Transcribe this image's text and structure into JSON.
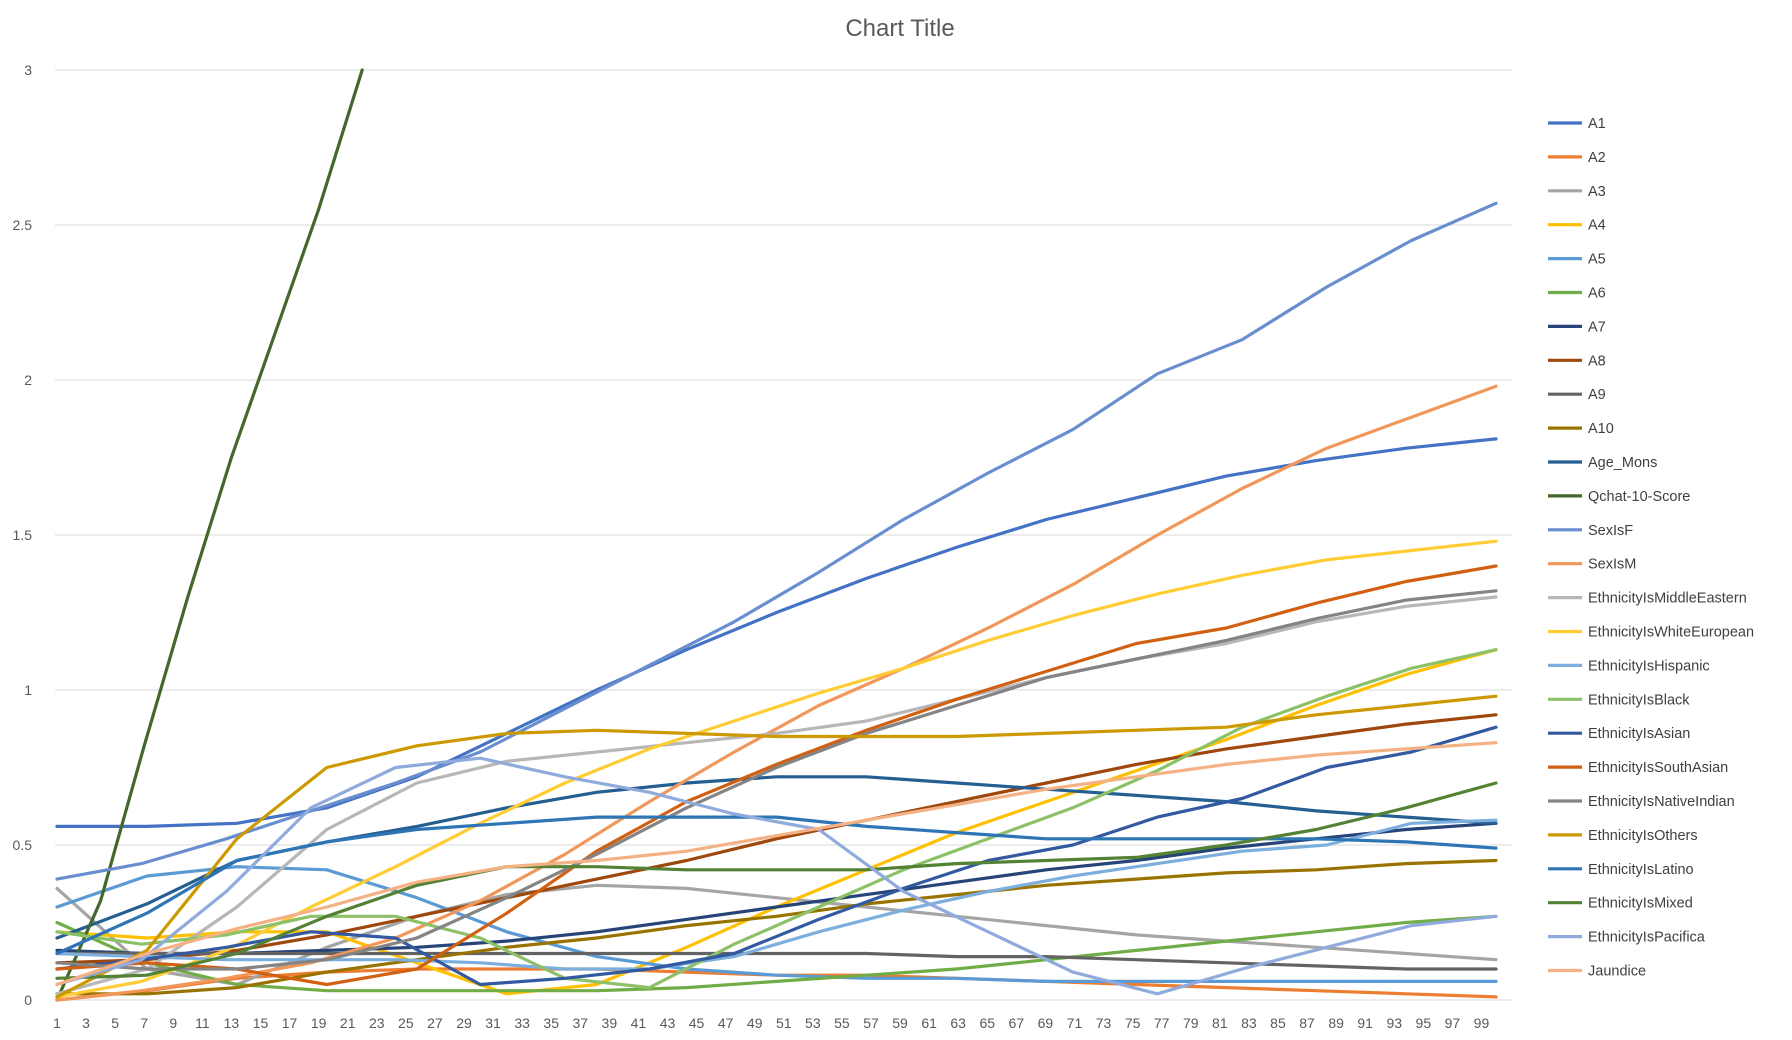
{
  "chart_data": {
    "type": "line",
    "title": "Chart Title",
    "xlabel": "",
    "ylabel": "",
    "x_range": [
      1,
      100
    ],
    "x_tick_labels": [
      "1",
      "3",
      "5",
      "7",
      "9",
      "11",
      "13",
      "15",
      "17",
      "19",
      "21",
      "23",
      "25",
      "27",
      "29",
      "31",
      "33",
      "35",
      "37",
      "39",
      "41",
      "43",
      "45",
      "47",
      "49",
      "51",
      "53",
      "55",
      "57",
      "59",
      "61",
      "63",
      "65",
      "67",
      "69",
      "71",
      "73",
      "75",
      "77",
      "79",
      "81",
      "83",
      "85",
      "87",
      "89",
      "91",
      "93",
      "95",
      "97",
      "99"
    ],
    "ylim": [
      0,
      3
    ],
    "y_ticks": [
      0,
      0.5,
      1,
      1.5,
      2,
      2.5,
      3
    ],
    "y_tick_labels": [
      "0",
      "0.5",
      "1",
      "1.5",
      "2",
      "2.5",
      "3"
    ],
    "grid": true,
    "legend_position": "right",
    "series": [
      {
        "name": "A1",
        "color": "#4472C4",
        "values": [
          0.56,
          0.56,
          0.57,
          0.62,
          0.72,
          0.86,
          1.0,
          1.13,
          1.25,
          1.36,
          1.46,
          1.55,
          1.62,
          1.69,
          1.74,
          1.78,
          1.81
        ]
      },
      {
        "name": "A2",
        "color": "#ED7D31",
        "values": [
          0.0,
          0.03,
          0.07,
          0.09,
          0.1,
          0.1,
          0.1,
          0.09,
          0.08,
          0.08,
          0.07,
          0.06,
          0.05,
          0.04,
          0.03,
          0.02,
          0.01
        ]
      },
      {
        "name": "A3",
        "color": "#A5A5A5",
        "values": [
          0.36,
          0.1,
          0.05,
          0.17,
          0.27,
          0.34,
          0.37,
          0.36,
          0.33,
          0.3,
          0.27,
          0.24,
          0.21,
          0.19,
          0.17,
          0.15,
          0.13
        ]
      },
      {
        "name": "A4",
        "color": "#FFC000",
        "values": [
          0.22,
          0.2,
          0.22,
          0.22,
          0.12,
          0.02,
          0.05,
          0.17,
          0.3,
          0.42,
          0.54,
          0.64,
          0.74,
          0.84,
          0.95,
          1.05,
          1.13
        ]
      },
      {
        "name": "A5",
        "color": "#5B9BD5",
        "values": [
          0.3,
          0.4,
          0.43,
          0.42,
          0.33,
          0.22,
          0.14,
          0.1,
          0.08,
          0.07,
          0.07,
          0.06,
          0.06,
          0.06,
          0.06,
          0.06,
          0.06
        ]
      },
      {
        "name": "A6",
        "color": "#70AD47",
        "values": [
          0.25,
          0.12,
          0.05,
          0.03,
          0.03,
          0.03,
          0.03,
          0.04,
          0.06,
          0.08,
          0.1,
          0.13,
          0.16,
          0.19,
          0.22,
          0.25,
          0.27
        ]
      },
      {
        "name": "A7",
        "color": "#264478",
        "values": [
          0.16,
          0.15,
          0.15,
          0.16,
          0.17,
          0.19,
          0.22,
          0.26,
          0.3,
          0.34,
          0.38,
          0.42,
          0.45,
          0.49,
          0.52,
          0.55,
          0.57
        ]
      },
      {
        "name": "A8",
        "color": "#9E480E",
        "values": [
          0.12,
          0.13,
          0.16,
          0.21,
          0.27,
          0.33,
          0.39,
          0.45,
          0.52,
          0.58,
          0.64,
          0.7,
          0.76,
          0.81,
          0.85,
          0.89,
          0.92
        ]
      },
      {
        "name": "A9",
        "color": "#636363",
        "values": [
          0.15,
          0.15,
          0.15,
          0.15,
          0.15,
          0.15,
          0.15,
          0.15,
          0.15,
          0.15,
          0.14,
          0.14,
          0.13,
          0.12,
          0.11,
          0.1,
          0.1
        ]
      },
      {
        "name": "A10",
        "color": "#997300",
        "values": [
          0.02,
          0.02,
          0.04,
          0.09,
          0.13,
          0.17,
          0.2,
          0.24,
          0.27,
          0.31,
          0.34,
          0.37,
          0.39,
          0.41,
          0.42,
          0.44,
          0.45
        ]
      },
      {
        "name": "Age_Mons",
        "color": "#255E91",
        "values": [
          0.2,
          0.31,
          0.45,
          0.51,
          0.56,
          0.62,
          0.67,
          0.7,
          0.72,
          0.72,
          0.7,
          0.68,
          0.66,
          0.64,
          0.61,
          0.59,
          0.57
        ]
      },
      {
        "name": "Qchat-10-Score",
        "color": "#43682B",
        "values": [
          0.0,
          0.32,
          0.82,
          1.3,
          1.75,
          2.15,
          2.55,
          3.0
        ]
      },
      {
        "name": "SexIsF",
        "color": "#698ED0",
        "values": [
          0.39,
          0.44,
          0.52,
          0.61,
          0.7,
          0.8,
          0.94,
          1.08,
          1.22,
          1.38,
          1.55,
          1.7,
          1.84,
          2.02,
          2.13,
          2.3,
          2.45,
          2.57
        ]
      },
      {
        "name": "SexIsM",
        "color": "#F1975A",
        "values": [
          0.0,
          0.03,
          0.07,
          0.12,
          0.2,
          0.32,
          0.47,
          0.64,
          0.8,
          0.95,
          1.07,
          1.2,
          1.34,
          1.5,
          1.65,
          1.78,
          1.88,
          1.98
        ]
      },
      {
        "name": "EthnicityIsMiddleEastern",
        "color": "#B7B7B7",
        "values": [
          0.02,
          0.1,
          0.3,
          0.55,
          0.7,
          0.77,
          0.8,
          0.83,
          0.86,
          0.9,
          0.97,
          1.04,
          1.1,
          1.15,
          1.22,
          1.27,
          1.3
        ]
      },
      {
        "name": "EthnicityIsWhiteEuropean",
        "color": "#FFCD33",
        "values": [
          0.01,
          0.06,
          0.16,
          0.3,
          0.43,
          0.57,
          0.7,
          0.81,
          0.9,
          0.99,
          1.07,
          1.16,
          1.24,
          1.31,
          1.37,
          1.42,
          1.45,
          1.48
        ]
      },
      {
        "name": "EthnicityIsHispanic",
        "color": "#7CAFDD",
        "values": [
          0.15,
          0.14,
          0.13,
          0.13,
          0.13,
          0.12,
          0.1,
          0.1,
          0.14,
          0.22,
          0.29,
          0.35,
          0.4,
          0.44,
          0.48,
          0.5,
          0.57,
          0.58
        ]
      },
      {
        "name": "EthnicityIsBlack",
        "color": "#8CC168",
        "values": [
          0.22,
          0.18,
          0.21,
          0.27,
          0.27,
          0.2,
          0.07,
          0.04,
          0.18,
          0.3,
          0.42,
          0.52,
          0.62,
          0.74,
          0.88,
          0.98,
          1.07,
          1.13
        ]
      },
      {
        "name": "EthnicityIsAsian",
        "color": "#335AA1",
        "values": [
          0.1,
          0.13,
          0.17,
          0.22,
          0.2,
          0.05,
          0.07,
          0.1,
          0.15,
          0.26,
          0.36,
          0.45,
          0.5,
          0.59,
          0.65,
          0.75,
          0.8,
          0.88
        ]
      },
      {
        "name": "EthnicityIsSouthAsian",
        "color": "#D26012",
        "values": [
          0.1,
          0.12,
          0.1,
          0.05,
          0.1,
          0.28,
          0.48,
          0.64,
          0.76,
          0.87,
          0.97,
          1.06,
          1.15,
          1.2,
          1.28,
          1.35,
          1.4
        ]
      },
      {
        "name": "EthnicityIsNativeIndian",
        "color": "#848484",
        "values": [
          0.12,
          0.1,
          0.1,
          0.13,
          0.2,
          0.33,
          0.47,
          0.62,
          0.75,
          0.86,
          0.95,
          1.04,
          1.1,
          1.16,
          1.23,
          1.29,
          1.32
        ]
      },
      {
        "name": "EthnicityIsOthers",
        "color": "#CC9A00",
        "values": [
          0.01,
          0.16,
          0.52,
          0.75,
          0.82,
          0.86,
          0.87,
          0.86,
          0.85,
          0.85,
          0.85,
          0.86,
          0.87,
          0.88,
          0.92,
          0.95,
          0.98
        ]
      },
      {
        "name": "EthnicityIsLatino",
        "color": "#2E75B6",
        "values": [
          0.15,
          0.28,
          0.45,
          0.51,
          0.55,
          0.57,
          0.59,
          0.59,
          0.59,
          0.56,
          0.54,
          0.52,
          0.52,
          0.52,
          0.52,
          0.51,
          0.49
        ]
      },
      {
        "name": "EthnicityIsMixed",
        "color": "#548235",
        "values": [
          0.07,
          0.08,
          0.15,
          0.27,
          0.37,
          0.43,
          0.43,
          0.42,
          0.42,
          0.42,
          0.44,
          0.45,
          0.46,
          0.5,
          0.55,
          0.62,
          0.7
        ]
      },
      {
        "name": "EthnicityIsPacifica",
        "color": "#8FAADC",
        "values": [
          0.05,
          0.13,
          0.35,
          0.62,
          0.75,
          0.78,
          0.72,
          0.67,
          0.6,
          0.55,
          0.35,
          0.22,
          0.09,
          0.02,
          0.1,
          0.17,
          0.24,
          0.27
        ]
      },
      {
        "name": "Jaundice",
        "color": "#F4B183",
        "values": [
          0.05,
          0.15,
          0.23,
          0.3,
          0.38,
          0.43,
          0.45,
          0.48,
          0.53,
          0.58,
          0.63,
          0.68,
          0.72,
          0.76,
          0.79,
          0.81,
          0.83
        ]
      }
    ]
  }
}
